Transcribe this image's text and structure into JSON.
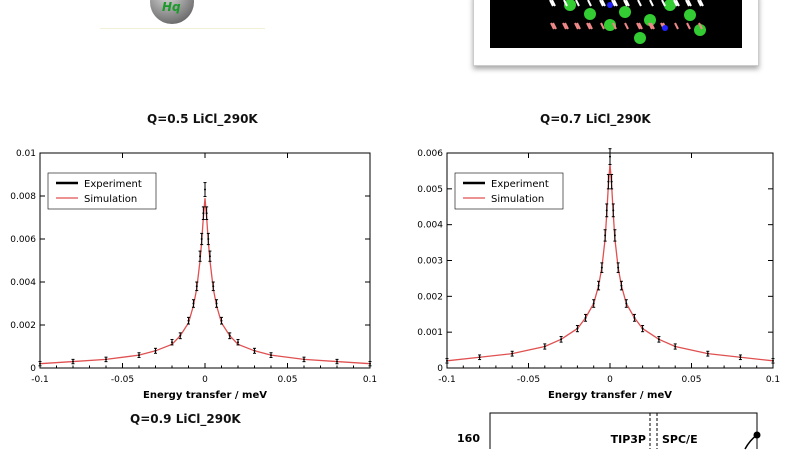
{
  "images": {
    "logo_text": "Hq"
  },
  "chart_data": [
    {
      "type": "line",
      "title": "Q=0.5 LiCl_290K",
      "xlabel": "Energy transfer / meV",
      "ylabel": "",
      "xlim": [
        -0.1,
        0.1
      ],
      "ylim": [
        0,
        0.01
      ],
      "xticks": [
        "-0.1",
        "-0.05",
        "0",
        "0.05",
        "0.1"
      ],
      "yticks": [
        "0",
        "0.002",
        "0.004",
        "0.006",
        "0.008",
        "0.01"
      ],
      "legend": {
        "placement": "top-left",
        "entries": [
          "Experiment",
          "Simulation"
        ]
      },
      "x": [
        -0.1,
        -0.08,
        -0.06,
        -0.04,
        -0.03,
        -0.02,
        -0.015,
        -0.01,
        -0.007,
        -0.005,
        -0.003,
        -0.002,
        -0.001,
        0,
        0.001,
        0.002,
        0.003,
        0.005,
        0.007,
        0.01,
        0.015,
        0.02,
        0.03,
        0.04,
        0.06,
        0.08,
        0.1
      ],
      "series": [
        {
          "name": "Experiment",
          "color": "#000000",
          "values": [
            0.0002,
            0.0003,
            0.0004,
            0.0006,
            0.0008,
            0.0012,
            0.0015,
            0.0022,
            0.003,
            0.0038,
            0.0052,
            0.006,
            0.0072,
            0.0083,
            0.0072,
            0.006,
            0.0052,
            0.0038,
            0.003,
            0.0022,
            0.0015,
            0.0012,
            0.0008,
            0.0006,
            0.0004,
            0.0003,
            0.0002
          ]
        },
        {
          "name": "Simulation",
          "color": "#e05050",
          "values": [
            0.0002,
            0.0003,
            0.0004,
            0.0006,
            0.0008,
            0.0011,
            0.0015,
            0.0021,
            0.0029,
            0.0037,
            0.005,
            0.0059,
            0.007,
            0.0079,
            0.007,
            0.0059,
            0.005,
            0.0037,
            0.0029,
            0.0021,
            0.0015,
            0.0011,
            0.0008,
            0.0006,
            0.0004,
            0.0003,
            0.0002
          ]
        }
      ]
    },
    {
      "type": "line",
      "title": "Q=0.7 LiCl_290K",
      "xlabel": "Energy transfer / meV",
      "ylabel": "",
      "xlim": [
        -0.1,
        0.1
      ],
      "ylim": [
        0,
        0.006
      ],
      "xticks": [
        "-0.1",
        "-0.05",
        "0",
        "0.05",
        "0.1"
      ],
      "yticks": [
        "0",
        "0.001",
        "0.002",
        "0.003",
        "0.004",
        "0.005",
        "0.006"
      ],
      "legend": {
        "placement": "top-left",
        "entries": [
          "Experiment",
          "Simulation"
        ]
      },
      "x": [
        -0.1,
        -0.08,
        -0.06,
        -0.04,
        -0.03,
        -0.02,
        -0.015,
        -0.01,
        -0.007,
        -0.005,
        -0.003,
        -0.002,
        -0.001,
        0,
        0.001,
        0.002,
        0.003,
        0.005,
        0.007,
        0.01,
        0.015,
        0.02,
        0.03,
        0.04,
        0.06,
        0.08,
        0.1
      ],
      "series": [
        {
          "name": "Experiment",
          "color": "#000000",
          "values": [
            0.0002,
            0.0003,
            0.0004,
            0.0006,
            0.0008,
            0.0011,
            0.0014,
            0.0018,
            0.0023,
            0.0028,
            0.0037,
            0.0044,
            0.0052,
            0.0059,
            0.0052,
            0.0044,
            0.0037,
            0.0028,
            0.0023,
            0.0018,
            0.0014,
            0.0011,
            0.0008,
            0.0006,
            0.0004,
            0.0003,
            0.0002
          ]
        },
        {
          "name": "Simulation",
          "color": "#e05050",
          "values": [
            0.0002,
            0.0003,
            0.0004,
            0.0006,
            0.0008,
            0.0011,
            0.0014,
            0.0018,
            0.0023,
            0.0028,
            0.0036,
            0.0043,
            0.0051,
            0.0057,
            0.0051,
            0.0043,
            0.0036,
            0.0028,
            0.0023,
            0.0018,
            0.0014,
            0.0011,
            0.0008,
            0.0006,
            0.0004,
            0.0003,
            0.0002
          ]
        }
      ]
    },
    {
      "type": "line",
      "title": "Q=0.9 LiCl_290K"
    },
    {
      "type": "line",
      "yticks": [
        "160"
      ],
      "annotations": [
        "TIP3P",
        "SPC/E"
      ]
    }
  ]
}
